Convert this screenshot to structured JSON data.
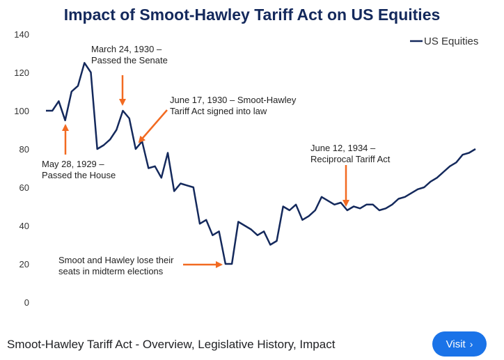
{
  "chart_data": {
    "type": "line",
    "title": "Impact of Smoot-Hawley Tariff Act on US Equities",
    "xlabel": "",
    "ylabel": "",
    "ylim": [
      0,
      140
    ],
    "yticks": [
      0,
      20,
      40,
      60,
      80,
      100,
      120,
      140
    ],
    "legend_position": "top-right",
    "series": [
      {
        "name": "US Equities",
        "color": "#14295c",
        "values": [
          100,
          100,
          105,
          95,
          110,
          113,
          125,
          120,
          80,
          82,
          85,
          90,
          100,
          96,
          80,
          84,
          70,
          71,
          65,
          78,
          58,
          62,
          61,
          60,
          41,
          43,
          35,
          37,
          20,
          20,
          42,
          40,
          38,
          35,
          37,
          30,
          32,
          50,
          48,
          51,
          43,
          45,
          48,
          55,
          53,
          51,
          52,
          48,
          50,
          49,
          51,
          51,
          48,
          49,
          51,
          54,
          55,
          57,
          59,
          60,
          63,
          65,
          68,
          71,
          73,
          77,
          78,
          80
        ]
      }
    ],
    "annotations": [
      {
        "lines": [
          "March 24, 1930 –",
          "Passed the Senate"
        ],
        "index": 12
      },
      {
        "lines": [
          "June 17, 1930 – Smoot-Hawley",
          "Tariff Act signed into law"
        ],
        "index": 15
      },
      {
        "lines": [
          "May 28, 1929 –",
          "Passed the House"
        ],
        "index": 3
      },
      {
        "lines": [
          "June 12, 1934 –",
          "Reciprocal Tariff Act"
        ],
        "index": 48
      },
      {
        "lines": [
          "Smoot and Hawley lose their",
          "seats in midterm elections"
        ],
        "index": 28
      }
    ],
    "annotation_color": "#f26a21"
  },
  "footer": {
    "caption": "Smoot-Hawley Tariff Act - Overview, Legislative History, Impact",
    "visit_label": "Visit",
    "visit_icon": "chevron-right-icon"
  }
}
